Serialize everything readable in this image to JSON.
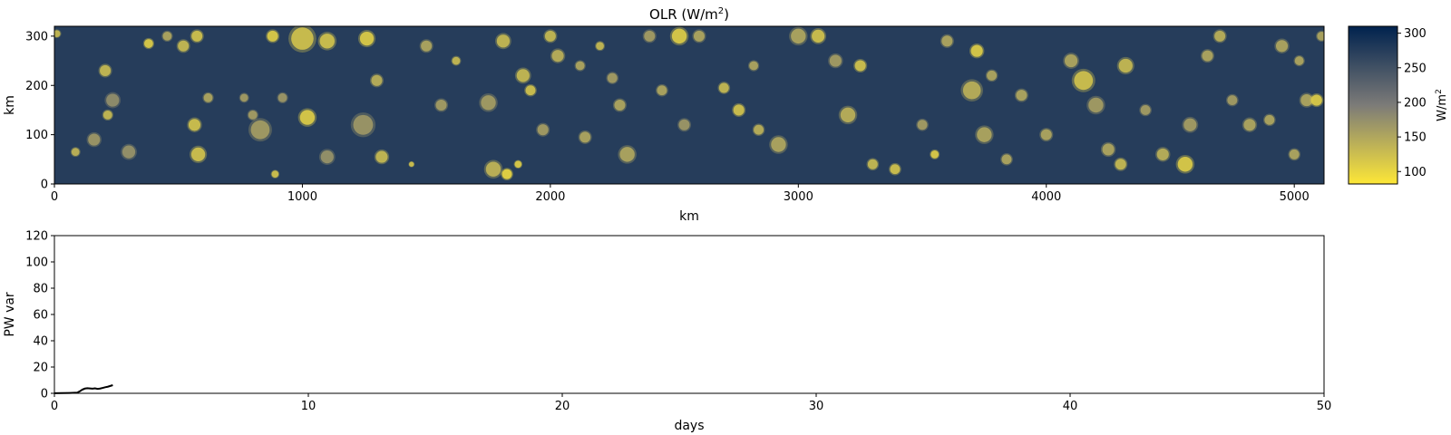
{
  "chart_data": [
    {
      "type": "heatmap",
      "title_main": "OLR (W/m",
      "title_sup": "2",
      "title_close": ")",
      "xlabel": "km",
      "ylabel": "km",
      "xlim": [
        0,
        5120
      ],
      "ylim": [
        0,
        320
      ],
      "xticks": [
        "0",
        "1000",
        "2000",
        "3000",
        "4000",
        "5000"
      ],
      "yticks": [
        "0",
        "100",
        "200",
        "300"
      ],
      "colorbar": {
        "label_main": "W/m",
        "label_sup": "2",
        "range": [
          82,
          310
        ],
        "ticks": [
          "100",
          "150",
          "200",
          "250",
          "300"
        ],
        "colormap": "cividis_r",
        "low_color": "#fde737",
        "mid_color": "#7c7b78",
        "high_color": "#00224e"
      },
      "background_olr": 275,
      "cells": [
        [
          10,
          305,
          14,
          130
        ],
        [
          85,
          65,
          16,
          135
        ],
        [
          160,
          90,
          24,
          165
        ],
        [
          205,
          230,
          22,
          130
        ],
        [
          215,
          140,
          18,
          130
        ],
        [
          235,
          170,
          26,
          175
        ],
        [
          300,
          65,
          26,
          170
        ],
        [
          380,
          285,
          18,
          110
        ],
        [
          455,
          300,
          18,
          150
        ],
        [
          520,
          280,
          22,
          130
        ],
        [
          565,
          120,
          24,
          120
        ],
        [
          575,
          300,
          22,
          120
        ],
        [
          580,
          60,
          28,
          120
        ],
        [
          620,
          175,
          18,
          150
        ],
        [
          765,
          175,
          16,
          160
        ],
        [
          800,
          140,
          18,
          160
        ],
        [
          830,
          110,
          38,
          160
        ],
        [
          880,
          300,
          22,
          110
        ],
        [
          890,
          20,
          14,
          120
        ],
        [
          920,
          175,
          18,
          165
        ],
        [
          1000,
          295,
          45,
          120
        ],
        [
          1020,
          135,
          30,
          110
        ],
        [
          1100,
          290,
          30,
          120
        ],
        [
          1100,
          55,
          26,
          170
        ],
        [
          1245,
          120,
          40,
          165
        ],
        [
          1260,
          295,
          28,
          110
        ],
        [
          1300,
          210,
          22,
          140
        ],
        [
          1320,
          55,
          24,
          130
        ],
        [
          1440,
          40,
          10,
          120
        ],
        [
          1500,
          280,
          22,
          150
        ],
        [
          1560,
          160,
          22,
          160
        ],
        [
          1620,
          250,
          16,
          130
        ],
        [
          1750,
          165,
          30,
          160
        ],
        [
          1770,
          30,
          30,
          135
        ],
        [
          1810,
          290,
          26,
          130
        ],
        [
          1825,
          20,
          20,
          100
        ],
        [
          1870,
          40,
          14,
          110
        ],
        [
          1890,
          220,
          26,
          130
        ],
        [
          1920,
          190,
          20,
          120
        ],
        [
          1970,
          110,
          22,
          160
        ],
        [
          2000,
          300,
          22,
          130
        ],
        [
          2030,
          260,
          24,
          140
        ],
        [
          2120,
          240,
          18,
          150
        ],
        [
          2140,
          95,
          22,
          150
        ],
        [
          2200,
          280,
          16,
          130
        ],
        [
          2250,
          215,
          20,
          160
        ],
        [
          2280,
          160,
          22,
          150
        ],
        [
          2310,
          60,
          30,
          150
        ],
        [
          2400,
          300,
          22,
          160
        ],
        [
          2450,
          190,
          20,
          150
        ],
        [
          2520,
          300,
          30,
          110
        ],
        [
          2540,
          120,
          22,
          165
        ],
        [
          2600,
          300,
          22,
          150
        ],
        [
          2700,
          195,
          20,
          130
        ],
        [
          2760,
          150,
          22,
          120
        ],
        [
          2820,
          240,
          18,
          150
        ],
        [
          2840,
          110,
          20,
          140
        ],
        [
          2920,
          80,
          30,
          150
        ],
        [
          3000,
          300,
          30,
          150
        ],
        [
          3080,
          300,
          26,
          120
        ],
        [
          3150,
          250,
          24,
          160
        ],
        [
          3200,
          140,
          30,
          140
        ],
        [
          3250,
          240,
          22,
          120
        ],
        [
          3300,
          40,
          20,
          130
        ],
        [
          3390,
          30,
          20,
          120
        ],
        [
          3500,
          120,
          20,
          160
        ],
        [
          3550,
          60,
          16,
          110
        ],
        [
          3600,
          290,
          22,
          150
        ],
        [
          3700,
          190,
          36,
          140
        ],
        [
          3720,
          270,
          24,
          110
        ],
        [
          3750,
          100,
          30,
          150
        ],
        [
          3780,
          220,
          20,
          150
        ],
        [
          3840,
          50,
          20,
          150
        ],
        [
          3900,
          180,
          22,
          150
        ],
        [
          4000,
          100,
          22,
          150
        ],
        [
          4100,
          250,
          26,
          150
        ],
        [
          4150,
          210,
          38,
          120
        ],
        [
          4200,
          160,
          30,
          160
        ],
        [
          4250,
          70,
          24,
          150
        ],
        [
          4300,
          40,
          22,
          130
        ],
        [
          4320,
          240,
          28,
          130
        ],
        [
          4400,
          150,
          20,
          160
        ],
        [
          4470,
          60,
          24,
          140
        ],
        [
          4560,
          40,
          30,
          110
        ],
        [
          4580,
          120,
          26,
          160
        ],
        [
          4650,
          260,
          22,
          150
        ],
        [
          4700,
          300,
          22,
          140
        ],
        [
          4750,
          170,
          20,
          160
        ],
        [
          4820,
          120,
          24,
          150
        ],
        [
          4900,
          130,
          20,
          150
        ],
        [
          4950,
          280,
          24,
          150
        ],
        [
          5000,
          60,
          20,
          150
        ],
        [
          5020,
          250,
          18,
          150
        ],
        [
          5050,
          170,
          24,
          150
        ],
        [
          5090,
          170,
          22,
          110
        ],
        [
          5110,
          300,
          18,
          150
        ]
      ]
    },
    {
      "type": "line",
      "xlabel": "days",
      "ylabel": "PW var",
      "xlim": [
        0,
        50
      ],
      "ylim": [
        0,
        120
      ],
      "xticks": [
        "0",
        "10",
        "20",
        "30",
        "40",
        "50"
      ],
      "yticks": [
        "0",
        "20",
        "40",
        "60",
        "80",
        "100",
        "120"
      ],
      "line_color": "#000000",
      "x": [
        0,
        0.3,
        0.6,
        0.9,
        1.0,
        1.1,
        1.2,
        1.3,
        1.4,
        1.5,
        1.6,
        1.7,
        1.8,
        1.9,
        2.0,
        2.1,
        2.2,
        2.3
      ],
      "y": [
        0.1,
        0.2,
        0.3,
        0.5,
        1.5,
        2.8,
        3.6,
        3.9,
        3.7,
        3.5,
        3.8,
        3.4,
        3.6,
        4.1,
        4.6,
        5.0,
        5.6,
        6.2
      ]
    }
  ]
}
